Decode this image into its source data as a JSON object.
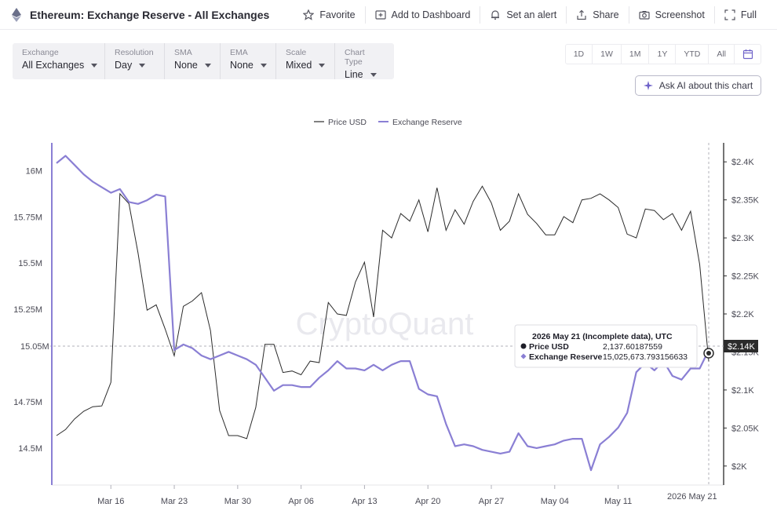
{
  "header": {
    "title": "Ethereum: Exchange Reserve - All Exchanges",
    "actions": [
      {
        "label": "Favorite",
        "icon": "star-icon"
      },
      {
        "label": "Add to Dashboard",
        "icon": "dashboard-icon"
      },
      {
        "label": "Set an alert",
        "icon": "bell-icon"
      },
      {
        "label": "Share",
        "icon": "share-icon"
      },
      {
        "label": "Screenshot",
        "icon": "camera-icon"
      },
      {
        "label": "Full",
        "icon": "fullscreen-icon"
      }
    ]
  },
  "filters": [
    {
      "label": "Exchange",
      "value": "All Exchanges"
    },
    {
      "label": "Resolution",
      "value": "Day"
    },
    {
      "label": "SMA",
      "value": "None"
    },
    {
      "label": "EMA",
      "value": "None"
    },
    {
      "label": "Scale",
      "value": "Mixed"
    },
    {
      "label": "Chart Type",
      "value": "Line"
    }
  ],
  "ranges": [
    "1D",
    "1W",
    "1M",
    "1Y",
    "YTD",
    "All"
  ],
  "ask_ai_label": "Ask AI about this chart",
  "watermark": "CryptoQuant",
  "colors": {
    "price": "#2b2b2b",
    "reserve": "#8a7fd4",
    "accent": "#6f63c9"
  },
  "chart_data": {
    "type": "line",
    "x": [
      "Mar 10",
      "Mar 11",
      "Mar 12",
      "Mar 13",
      "Mar 14",
      "Mar 15",
      "Mar 16",
      "Mar 17",
      "Mar 18",
      "Mar 19",
      "Mar 20",
      "Mar 21",
      "Mar 22",
      "Mar 23",
      "Mar 24",
      "Mar 25",
      "Mar 26",
      "Mar 27",
      "Mar 28",
      "Mar 29",
      "Mar 30",
      "Mar 31",
      "Apr 01",
      "Apr 02",
      "Apr 03",
      "Apr 04",
      "Apr 05",
      "Apr 06",
      "Apr 07",
      "Apr 08",
      "Apr 09",
      "Apr 10",
      "Apr 11",
      "Apr 12",
      "Apr 13",
      "Apr 14",
      "Apr 15",
      "Apr 16",
      "Apr 17",
      "Apr 18",
      "Apr 19",
      "Apr 20",
      "Apr 21",
      "Apr 22",
      "Apr 23",
      "Apr 24",
      "Apr 25",
      "Apr 26",
      "Apr 27",
      "Apr 28",
      "Apr 29",
      "Apr 30",
      "May 01",
      "May 02",
      "May 03",
      "May 04",
      "May 05",
      "May 06",
      "May 07",
      "May 08",
      "May 09",
      "May 10",
      "May 11",
      "May 12",
      "May 13",
      "May 14",
      "May 15",
      "May 16",
      "May 17",
      "May 18",
      "May 19",
      "May 20",
      "May 21"
    ],
    "x_ticks": [
      "Mar 16",
      "Mar 23",
      "Mar 30",
      "Apr 06",
      "Apr 13",
      "Apr 20",
      "Apr 27",
      "May 04",
      "May 11"
    ],
    "series": [
      {
        "name": "Price USD",
        "axis": "right",
        "values": [
          2040,
          2048,
          2062,
          2072,
          2078,
          2079,
          2110,
          2358,
          2345,
          2280,
          2205,
          2212,
          2180,
          2145,
          2210,
          2217,
          2228,
          2178,
          2073,
          2040,
          2040,
          2036,
          2077,
          2160,
          2160,
          2123,
          2125,
          2120,
          2138,
          2136,
          2215,
          2200,
          2198,
          2242,
          2268,
          2196,
          2310,
          2300,
          2332,
          2322,
          2350,
          2308,
          2366,
          2310,
          2337,
          2318,
          2348,
          2368,
          2346,
          2310,
          2322,
          2358,
          2331,
          2319,
          2304,
          2304,
          2328,
          2320,
          2350,
          2352,
          2358,
          2350,
          2340,
          2305,
          2300,
          2338,
          2336,
          2324,
          2332,
          2310,
          2335,
          2265,
          2137.6
        ]
      },
      {
        "name": "Exchange Reserve",
        "axis": "left",
        "values": [
          16.04,
          16.08,
          16.03,
          15.98,
          15.94,
          15.91,
          15.88,
          15.9,
          15.83,
          15.82,
          15.84,
          15.87,
          15.86,
          15.03,
          15.06,
          15.04,
          15.0,
          14.98,
          15.0,
          15.02,
          15.0,
          14.98,
          14.95,
          14.88,
          14.81,
          14.84,
          14.84,
          14.83,
          14.83,
          14.88,
          14.92,
          14.97,
          14.93,
          14.93,
          14.92,
          14.95,
          14.92,
          14.95,
          14.97,
          14.97,
          14.82,
          14.79,
          14.78,
          14.63,
          14.51,
          14.52,
          14.51,
          14.49,
          14.48,
          14.47,
          14.48,
          14.58,
          14.51,
          14.5,
          14.51,
          14.52,
          14.54,
          14.55,
          14.55,
          14.38,
          14.52,
          14.56,
          14.61,
          14.69,
          14.91,
          14.96,
          14.92,
          14.97,
          14.89,
          14.87,
          14.93,
          14.93,
          15.03
        ]
      }
    ],
    "left_axis": {
      "ticks": [
        "14.5M",
        "14.75M",
        "15M",
        "15.25M",
        "15.5M",
        "15.75M",
        "16M"
      ],
      "range": [
        14.3,
        16.15
      ]
    },
    "right_axis": {
      "ticks": [
        "$2K",
        "$2.05K",
        "$2.1K",
        "$2.15K",
        "$2.2K",
        "$2.25K",
        "$2.3K",
        "$2.35K",
        "$2.4K"
      ],
      "range": [
        1975,
        2425
      ]
    },
    "crosshair_left_label": "15.05M",
    "crosshair_right_label": "$2.14K",
    "crosshair_x_label": "2026 May 21",
    "tooltip": {
      "title": "2026 May 21 (Incomplete data), UTC",
      "rows": [
        {
          "name": "Price USD",
          "value": "2,137.60187559"
        },
        {
          "name": "Exchange Reserve",
          "value": "15,025,673.793156633"
        }
      ]
    },
    "legend": [
      {
        "name": "Price USD"
      },
      {
        "name": "Exchange Reserve"
      }
    ],
    "legend_position": "top-center",
    "grid": false
  }
}
